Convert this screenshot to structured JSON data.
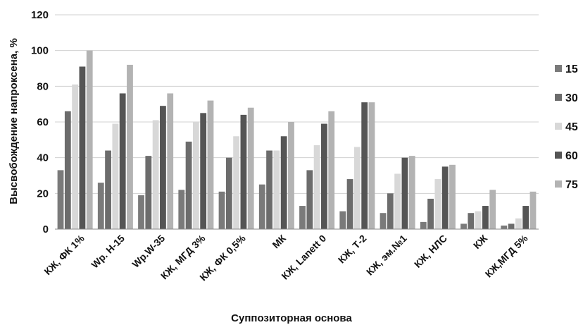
{
  "chart_data": {
    "type": "bar",
    "title": "",
    "xlabel": "Суппозиторная основа",
    "ylabel": "Высвобождение напроксена, %",
    "ylim": [
      0,
      120
    ],
    "yticks": [
      "0",
      "20",
      "40",
      "60",
      "80",
      "100",
      "120"
    ],
    "grid": true,
    "legend_position": "right",
    "categories": [
      "КЖ, ФК 1%",
      "Wp. H-15",
      "Wp.W-35",
      "КЖ, МГД 3%",
      "КЖ, ФК 0,5%",
      "МК",
      "КЖ, Lanett 0",
      "КЖ, Т-2",
      "КЖ, эм.№1",
      "КЖ, НЛС",
      "КЖ",
      "КЖ,МГД 5%"
    ],
    "series": [
      {
        "name": "15",
        "color": "#7a7a7a",
        "values": [
          33,
          26,
          19,
          22,
          21,
          25,
          13,
          10,
          9,
          4,
          3,
          2
        ]
      },
      {
        "name": "30",
        "color": "#6c6c6c",
        "values": [
          66,
          44,
          41,
          49,
          40,
          44,
          33,
          28,
          20,
          17,
          9,
          3
        ]
      },
      {
        "name": "45",
        "color": "#d8d8d8",
        "values": [
          81,
          59,
          61,
          60,
          52,
          44,
          47,
          46,
          31,
          28,
          10,
          6
        ]
      },
      {
        "name": "60",
        "color": "#555555",
        "values": [
          91,
          76,
          69,
          65,
          64,
          52,
          59,
          71,
          40,
          35,
          13,
          13
        ]
      },
      {
        "name": "75",
        "color": "#b3b3b3",
        "values": [
          100,
          92,
          76,
          72,
          68,
          60,
          66,
          71,
          41,
          36,
          22,
          21
        ]
      }
    ]
  }
}
